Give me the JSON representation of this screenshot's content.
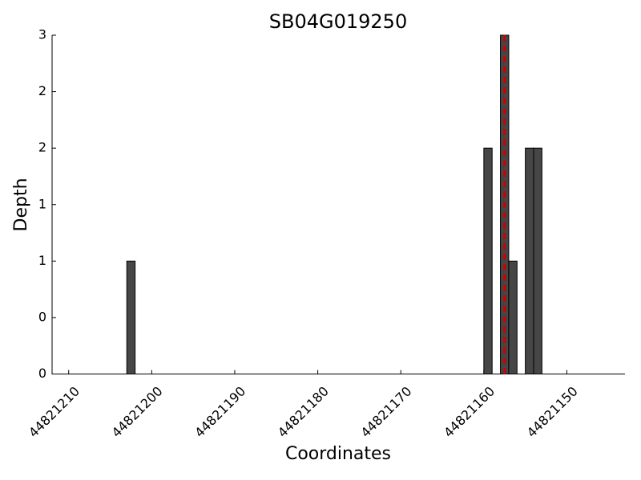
{
  "chart_data": {
    "type": "bar",
    "title": "SB04G019250",
    "x_label": "Coordinates",
    "y_label": "Depth",
    "x": [
      44821203,
      44821160,
      44821158,
      44821157,
      44821155,
      44821154
    ],
    "values": [
      1,
      2,
      3,
      1,
      2,
      2
    ],
    "color": "#464646",
    "marker_x": 44821157.5,
    "marker_color": "#cc0000",
    "xlim": [
      44821212,
      44821143
    ],
    "xticks": [
      44821210,
      44821200,
      44821190,
      44821180,
      44821170,
      44821160,
      44821150
    ],
    "ylim": [
      0,
      3
    ],
    "yticks": [
      {
        "value": 0,
        "label": "0"
      },
      {
        "value": 0.5,
        "label": "0"
      },
      {
        "value": 1,
        "label": "1"
      },
      {
        "value": 1.5,
        "label": "1"
      },
      {
        "value": 2,
        "label": "2"
      },
      {
        "value": 2.5,
        "label": "2"
      },
      {
        "value": 3,
        "label": "3"
      }
    ],
    "grid": false
  }
}
